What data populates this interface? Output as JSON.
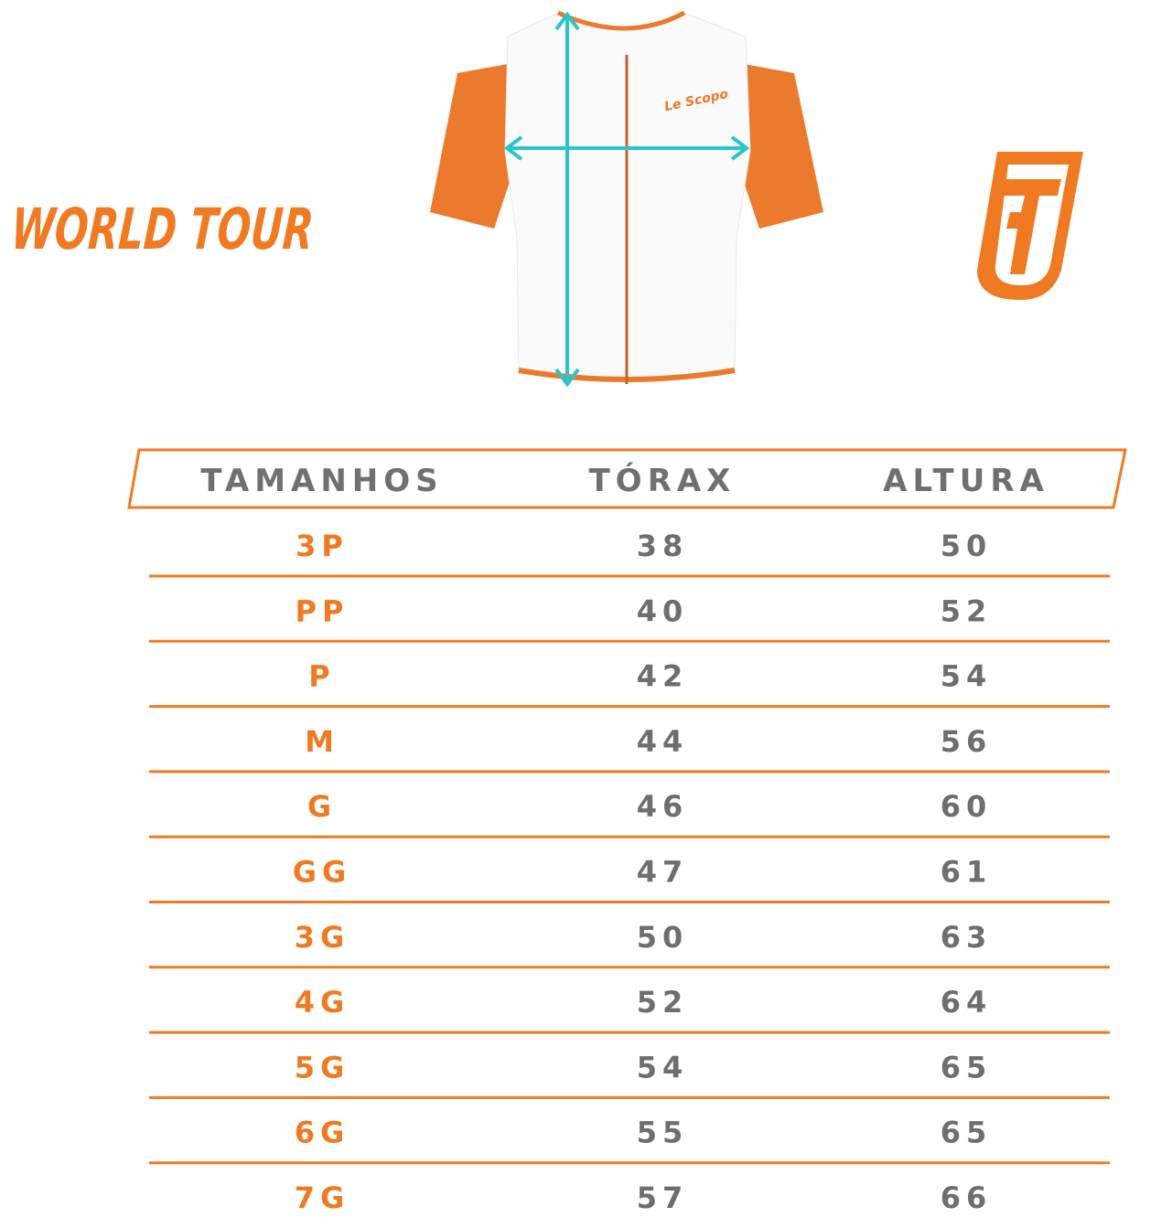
{
  "header": {
    "title": "WORLD TOUR"
  },
  "shirt": {
    "logo": "Le Scopo"
  },
  "table": {
    "columns": [
      "TAMANHOS",
      "TÓRAX",
      "ALTURA"
    ],
    "rows": [
      [
        "3P",
        38,
        50
      ],
      [
        "PP",
        40,
        52
      ],
      [
        "P",
        42,
        54
      ],
      [
        "M",
        44,
        56
      ],
      [
        "G",
        46,
        60
      ],
      [
        "GG",
        47,
        61
      ],
      [
        "3G",
        50,
        63
      ],
      [
        "4G",
        52,
        64
      ],
      [
        "5G",
        54,
        65
      ],
      [
        "6G",
        55,
        65
      ],
      [
        "7G",
        57,
        66
      ]
    ]
  }
}
